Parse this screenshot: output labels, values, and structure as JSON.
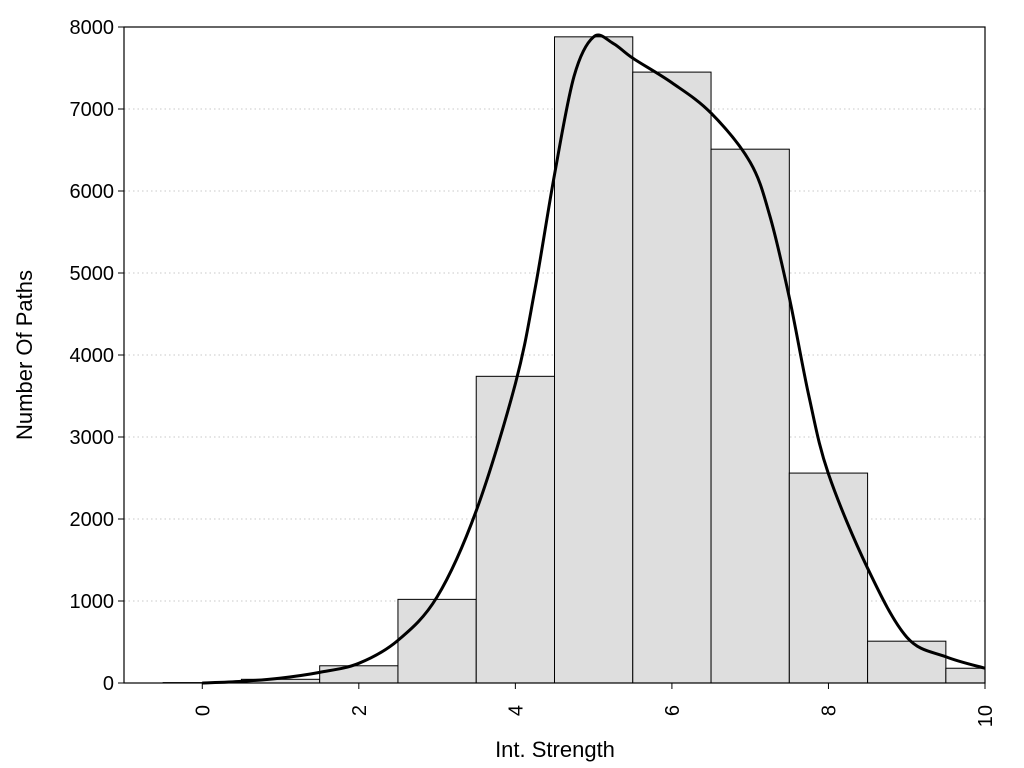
{
  "chart_data": {
    "type": "bar",
    "title": "",
    "xlabel": "Int. Strength",
    "ylabel": "Number Of Paths",
    "xlim": [
      -1,
      10
    ],
    "ylim": [
      0,
      8000
    ],
    "grid": "horizontal dotted",
    "x_ticks": [
      0,
      2,
      4,
      6,
      8,
      10
    ],
    "y_ticks": [
      0,
      1000,
      2000,
      3000,
      4000,
      5000,
      6000,
      7000,
      8000
    ],
    "bins": [
      {
        "center": 0,
        "value": 5
      },
      {
        "center": 1,
        "value": 45
      },
      {
        "center": 2,
        "value": 210
      },
      {
        "center": 3,
        "value": 1020
      },
      {
        "center": 4,
        "value": 3740
      },
      {
        "center": 5,
        "value": 7880
      },
      {
        "center": 6,
        "value": 7450
      },
      {
        "center": 7,
        "value": 6510
      },
      {
        "center": 8,
        "value": 2560
      },
      {
        "center": 9,
        "value": 510
      },
      {
        "center": 10,
        "value": 180
      }
    ],
    "bin_width": 1,
    "bar_color": "#dedede",
    "density_curve": {
      "x": [
        0,
        0.5,
        1,
        1.5,
        2,
        2.5,
        3,
        3.5,
        4,
        4.25,
        4.5,
        4.75,
        5,
        5.25,
        5.5,
        6,
        6.5,
        7,
        7.25,
        7.5,
        7.75,
        8,
        8.5,
        9,
        9.5,
        10
      ],
      "y": [
        0,
        20,
        60,
        130,
        240,
        520,
        1050,
        2100,
        3650,
        4800,
        6200,
        7400,
        7880,
        7800,
        7620,
        7320,
        6950,
        6350,
        5700,
        4700,
        3500,
        2550,
        1400,
        560,
        320,
        180
      ]
    }
  }
}
